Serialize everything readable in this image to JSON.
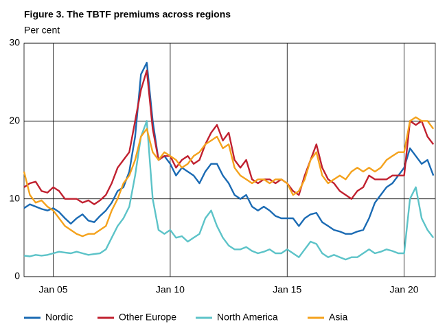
{
  "chart_data": {
    "type": "line",
    "title": "Figure 3. The TBTF premiums across regions",
    "subtitle": "Per cent",
    "x": [
      "2003-10",
      "2004-01",
      "2004-04",
      "2004-07",
      "2004-10",
      "2005-01",
      "2005-04",
      "2005-07",
      "2005-10",
      "2006-01",
      "2006-04",
      "2006-07",
      "2006-10",
      "2007-01",
      "2007-04",
      "2007-07",
      "2007-10",
      "2008-01",
      "2008-04",
      "2008-07",
      "2008-10",
      "2009-01",
      "2009-04",
      "2009-07",
      "2009-10",
      "2010-01",
      "2010-04",
      "2010-07",
      "2010-10",
      "2011-01",
      "2011-04",
      "2011-07",
      "2011-10",
      "2012-01",
      "2012-04",
      "2012-07",
      "2012-10",
      "2013-01",
      "2013-04",
      "2013-07",
      "2013-10",
      "2014-01",
      "2014-04",
      "2014-07",
      "2014-10",
      "2015-01",
      "2015-04",
      "2015-07",
      "2015-10",
      "2016-01",
      "2016-04",
      "2016-07",
      "2016-10",
      "2017-01",
      "2017-04",
      "2017-07",
      "2017-10",
      "2018-01",
      "2018-04",
      "2018-07",
      "2018-10",
      "2019-01",
      "2019-04",
      "2019-07",
      "2019-10",
      "2020-01",
      "2020-04",
      "2020-07",
      "2020-10",
      "2021-01",
      "2021-04"
    ],
    "series": [
      {
        "name": "Nordic",
        "color": "#1a6ab3",
        "values": [
          8.8,
          9.3,
          9.0,
          8.7,
          8.5,
          8.8,
          8.3,
          7.5,
          6.8,
          7.5,
          8.0,
          7.2,
          7.0,
          7.8,
          8.5,
          9.5,
          11.0,
          11.5,
          13.5,
          18,
          26,
          27.5,
          20,
          15,
          15.5,
          14.5,
          13,
          14,
          13.5,
          13,
          12,
          13.5,
          14.5,
          14.5,
          13,
          12,
          10.5,
          10,
          10.5,
          9,
          8.5,
          9,
          8.5,
          7.8,
          7.5,
          7.5,
          7.5,
          6.5,
          7.5,
          8.0,
          8.2,
          7.0,
          6.5,
          6.0,
          5.8,
          5.5,
          5.5,
          5.8,
          6.0,
          7.5,
          9.5,
          10.5,
          11.5,
          12,
          13,
          14,
          16.5,
          15.5,
          14.5,
          15,
          13
        ]
      },
      {
        "name": "Other Europe",
        "color": "#c0202f",
        "values": [
          11.5,
          12,
          12.2,
          11,
          10.8,
          11.5,
          11,
          10,
          10.0,
          10.0,
          9.5,
          9.8,
          9.3,
          9.8,
          10.5,
          12,
          14,
          15,
          16,
          20,
          24,
          26.5,
          19,
          15,
          15.5,
          15.5,
          14,
          15,
          15.5,
          14.5,
          15,
          17,
          18.5,
          19.5,
          17.5,
          18.5,
          15,
          14,
          15,
          12.5,
          12,
          12.5,
          12.5,
          12,
          12.5,
          12,
          11,
          10.5,
          13,
          15,
          17,
          14,
          12.5,
          12,
          11,
          10.5,
          10,
          11,
          11.5,
          13,
          12.5,
          12.5,
          12.5,
          13,
          13,
          13,
          20,
          19.5,
          20,
          18,
          17
        ]
      },
      {
        "name": "North America",
        "color": "#5cc3c8",
        "values": [
          2.7,
          2.6,
          2.8,
          2.7,
          2.8,
          3.0,
          3.2,
          3.1,
          3.0,
          3.2,
          3.0,
          2.8,
          2.9,
          3.0,
          3.5,
          5,
          6.5,
          7.5,
          9,
          13,
          18,
          20,
          10,
          6,
          5.5,
          6,
          5,
          5.2,
          4.5,
          5,
          5.5,
          7.5,
          8.5,
          6.5,
          5,
          4,
          3.5,
          3.5,
          3.8,
          3.3,
          3.0,
          3.2,
          3.5,
          3.0,
          3.0,
          3.5,
          3.0,
          2.5,
          3.5,
          4.5,
          4.2,
          3.0,
          2.5,
          2.8,
          2.5,
          2.2,
          2.5,
          2.5,
          3.0,
          3.5,
          3.0,
          3.2,
          3.5,
          3.3,
          3.0,
          3.0,
          10,
          11.5,
          7.5,
          6,
          5
        ]
      },
      {
        "name": "Asia",
        "color": "#f4a21c",
        "values": [
          13.5,
          10.5,
          9.5,
          9.8,
          9.0,
          8.5,
          7.5,
          6.5,
          6.0,
          5.5,
          5.2,
          5.5,
          5.5,
          6.0,
          6.5,
          8.5,
          10,
          12,
          13,
          15,
          18,
          19,
          16,
          15,
          16,
          15.5,
          15,
          14,
          14.5,
          15.5,
          16,
          17,
          17.5,
          18,
          16.5,
          17,
          14,
          13,
          12.5,
          12,
          12.5,
          12.5,
          12,
          12.5,
          12.5,
          12,
          10.5,
          11,
          12.5,
          15,
          16,
          13,
          12,
          12.5,
          13,
          12.5,
          13.5,
          14,
          13.5,
          14,
          13.5,
          14,
          15,
          15.5,
          16,
          16,
          20,
          20.5,
          20,
          20,
          19
        ]
      }
    ],
    "xlim": [
      "2003-10",
      "2021-05"
    ],
    "xticks": [
      {
        "value": "2005-01",
        "label": "Jan 05"
      },
      {
        "value": "2010-01",
        "label": "Jan 10"
      },
      {
        "value": "2015-01",
        "label": "Jan 15"
      },
      {
        "value": "2020-01",
        "label": "Jan 20"
      }
    ],
    "ylim": [
      0,
      30
    ],
    "yticks": [
      0,
      10,
      20,
      30
    ],
    "grid": true
  }
}
